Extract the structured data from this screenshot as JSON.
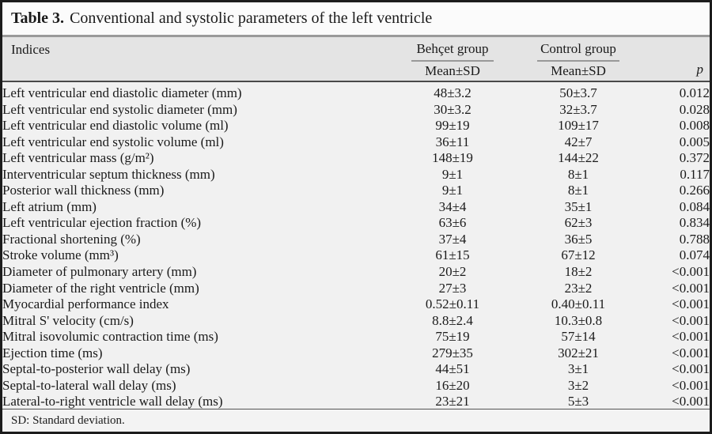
{
  "title": {
    "label": "Table 3.",
    "text": "Conventional and systolic parameters of the left ventricle"
  },
  "table": {
    "indices_header": "Indices",
    "groups": [
      {
        "name": "Behçet group",
        "subheader": "Mean±SD"
      },
      {
        "name": "Control group",
        "subheader": "Mean±SD"
      }
    ],
    "p_header": "p",
    "rows": [
      {
        "indice": "Left ventricular end diastolic diameter (mm)",
        "behcet": "48±3.2",
        "control": "50±3.7",
        "p": "0.012"
      },
      {
        "indice": "Left ventricular end systolic diameter (mm)",
        "behcet": "30±3.2",
        "control": "32±3.7",
        "p": "0.028"
      },
      {
        "indice": "Left ventricular end diastolic volume (ml)",
        "behcet": "99±19",
        "control": "109±17",
        "p": "0.008"
      },
      {
        "indice": "Left ventricular end systolic volume (ml)",
        "behcet": "36±11",
        "control": "42±7",
        "p": "0.005"
      },
      {
        "indice": "Left ventricular mass (g/m²)",
        "behcet": "148±19",
        "control": "144±22",
        "p": "0.372"
      },
      {
        "indice": "Interventricular septum thickness (mm)",
        "behcet": "9±1",
        "control": "8±1",
        "p": "0.117"
      },
      {
        "indice": "Posterior wall thickness (mm)",
        "behcet": "9±1",
        "control": "8±1",
        "p": "0.266"
      },
      {
        "indice": "Left atrium (mm)",
        "behcet": "34±4",
        "control": "35±1",
        "p": "0.084"
      },
      {
        "indice": "Left ventricular ejection fraction (%)",
        "behcet": "63±6",
        "control": "62±3",
        "p": "0.834"
      },
      {
        "indice": "Fractional shortening (%)",
        "behcet": "37±4",
        "control": "36±5",
        "p": "0.788"
      },
      {
        "indice": "Stroke volume (mm³)",
        "behcet": "61±15",
        "control": "67±12",
        "p": "0.074"
      },
      {
        "indice": "Diameter of pulmonary artery (mm)",
        "behcet": "20±2",
        "control": "18±2",
        "p": "<0.001"
      },
      {
        "indice": "Diameter of the right ventricle (mm)",
        "behcet": "27±3",
        "control": "23±2",
        "p": "<0.001"
      },
      {
        "indice": "Myocardial performance index",
        "behcet": "0.52±0.11",
        "control": "0.40±0.11",
        "p": "<0.001"
      },
      {
        "indice": "Mitral S' velocity (cm/s)",
        "behcet": "8.8±2.4",
        "control": "10.3±0.8",
        "p": "<0.001"
      },
      {
        "indice": "Mitral isovolumic contraction time (ms)",
        "behcet": "75±19",
        "control": "57±14",
        "p": "<0.001"
      },
      {
        "indice": "Ejection time (ms)",
        "behcet": "279±35",
        "control": "302±21",
        "p": "<0.001"
      },
      {
        "indice": "Septal-to-posterior wall delay (ms)",
        "behcet": "44±51",
        "control": "3±1",
        "p": "<0.001"
      },
      {
        "indice": "Septal-to-lateral wall delay (ms)",
        "behcet": "16±20",
        "control": "3±2",
        "p": "<0.001"
      },
      {
        "indice": "Lateral-to-right ventricle wall delay (ms)",
        "behcet": "23±21",
        "control": "5±3",
        "p": "<0.001"
      }
    ]
  },
  "footnote": "SD: Standard deviation.",
  "colors": {
    "border": "#1c1c1c",
    "header_band": "#e4e4e4",
    "header_top_rule": "#9a9a9a",
    "header_bottom_rule": "#4a4a4a",
    "group_underline": "#999999",
    "body_background": "#f1f1f1",
    "title_background": "#fbfbfb",
    "text": "#1a1a1a"
  }
}
